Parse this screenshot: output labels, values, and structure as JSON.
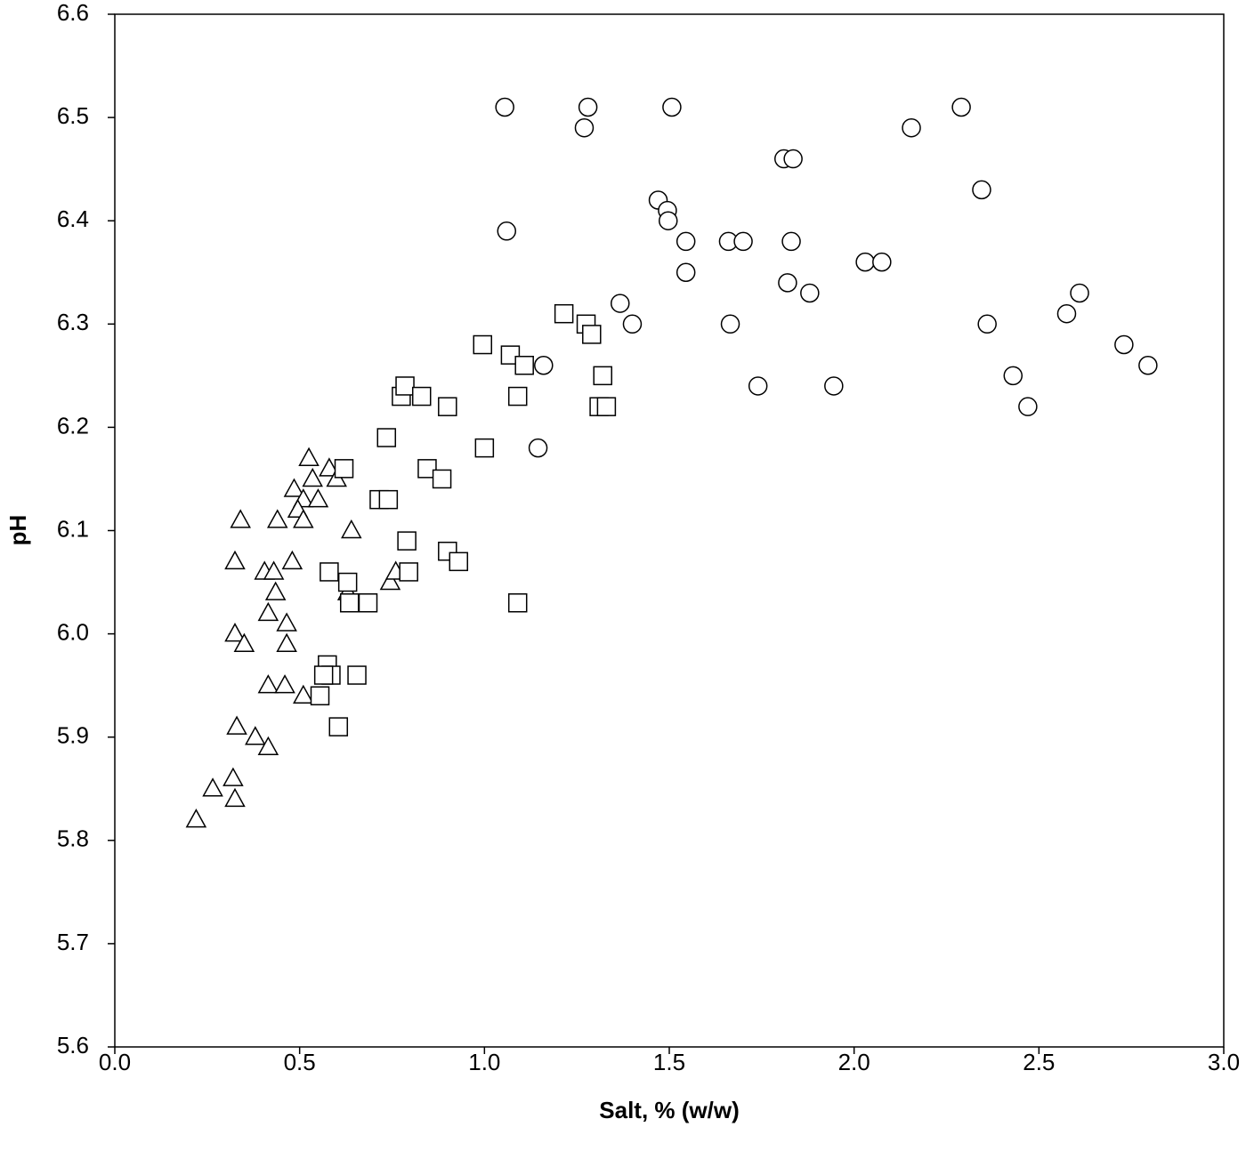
{
  "chart_data": {
    "type": "scatter",
    "x_label": "Salt, % (w/w)",
    "y_label": "pH",
    "xlim": [
      0,
      3
    ],
    "ylim": [
      5.6,
      6.6
    ],
    "xticks": [
      {
        "value": 0,
        "label": "0.0"
      },
      0.5,
      {
        "value": 1,
        "label": "1.0"
      },
      1.5,
      {
        "value": 2,
        "label": "2.0"
      },
      2.5,
      {
        "value": 3,
        "label": "3.0"
      }
    ],
    "yticks": [
      5.6,
      5.7,
      5.8,
      5.9,
      {
        "value": 6,
        "label": "6.0"
      },
      6.1,
      6.2,
      6.3,
      6.4,
      6.5,
      6.6
    ],
    "grid": false,
    "series": [
      {
        "marker": "triangle",
        "color": "#000000",
        "x": [
          0.22,
          0.265,
          0.32,
          0.325,
          0.33,
          0.38,
          0.415,
          0.325,
          0.34,
          0.325,
          0.35,
          0.405,
          0.43,
          0.415,
          0.435,
          0.415,
          0.46,
          0.44,
          0.465,
          0.465,
          0.48,
          0.485,
          0.51,
          0.495,
          0.51,
          0.51,
          0.525,
          0.535,
          0.55,
          0.58,
          0.6,
          0.64,
          0.63,
          0.745,
          0.76
        ],
        "values": [
          5.82,
          5.85,
          5.86,
          5.84,
          5.91,
          5.9,
          5.89,
          6.07,
          6.11,
          6.0,
          5.99,
          6.06,
          6.06,
          6.02,
          6.04,
          5.95,
          5.95,
          6.11,
          6.01,
          5.99,
          6.07,
          6.14,
          6.13,
          6.12,
          6.11,
          5.94,
          6.17,
          6.15,
          6.13,
          6.16,
          6.15,
          6.1,
          6.04,
          6.05,
          6.06
        ]
      },
      {
        "marker": "square",
        "color": "#000000",
        "x": [
          0.62,
          0.58,
          0.63,
          0.635,
          0.685,
          0.575,
          0.585,
          0.565,
          0.555,
          0.655,
          0.605,
          0.715,
          0.74,
          0.735,
          0.775,
          0.785,
          0.83,
          0.9,
          0.79,
          0.795,
          0.845,
          0.885,
          0.9,
          0.93,
          1.0,
          0.995,
          1.07,
          1.108,
          1.09,
          1.09,
          1.215,
          1.275,
          1.29,
          1.32,
          1.31,
          1.33
        ],
        "values": [
          6.16,
          6.06,
          6.05,
          6.03,
          6.03,
          5.97,
          5.96,
          5.96,
          5.94,
          5.96,
          5.91,
          6.13,
          6.13,
          6.19,
          6.23,
          6.24,
          6.23,
          6.22,
          6.09,
          6.06,
          6.16,
          6.15,
          6.08,
          6.07,
          6.18,
          6.28,
          6.27,
          6.26,
          6.23,
          6.03,
          6.31,
          6.3,
          6.29,
          6.25,
          6.22,
          6.22
        ]
      },
      {
        "marker": "circle",
        "color": "#000000",
        "x": [
          1.055,
          1.06,
          1.28,
          1.27,
          1.507,
          1.16,
          1.145,
          1.367,
          1.4,
          1.47,
          1.495,
          1.497,
          1.545,
          1.545,
          1.66,
          1.7,
          1.665,
          1.74,
          1.81,
          1.835,
          1.83,
          1.82,
          1.88,
          1.945,
          2.03,
          2.075,
          2.155,
          2.29,
          2.345,
          2.36,
          2.43,
          2.47,
          2.575,
          2.61,
          2.73,
          2.795
        ],
        "values": [
          6.51,
          6.39,
          6.51,
          6.49,
          6.51,
          6.26,
          6.18,
          6.32,
          6.3,
          6.42,
          6.41,
          6.4,
          6.38,
          6.35,
          6.38,
          6.38,
          6.3,
          6.24,
          6.46,
          6.46,
          6.38,
          6.34,
          6.33,
          6.24,
          6.36,
          6.36,
          6.49,
          6.51,
          6.43,
          6.3,
          6.25,
          6.22,
          6.31,
          6.33,
          6.28,
          6.26
        ]
      }
    ]
  }
}
